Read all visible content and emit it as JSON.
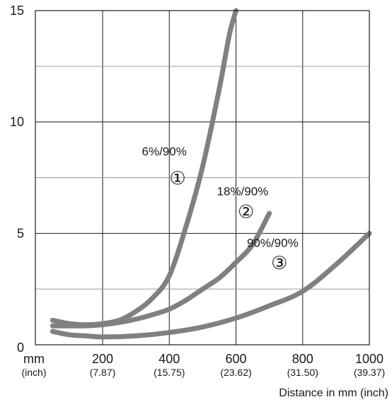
{
  "chart_data": {
    "type": "line",
    "xlabel": "Distance in mm (inch)",
    "xunit_label": "mm",
    "xunit_sub_label": "(inch)",
    "xlim": [
      50,
      1000
    ],
    "ylim": [
      0,
      15
    ],
    "grid": true,
    "x_ticks": [
      {
        "value": 200,
        "label": "200",
        "sub": "(7.87)"
      },
      {
        "value": 400,
        "label": "400",
        "sub": "(15.75)"
      },
      {
        "value": 600,
        "label": "600",
        "sub": "(23.62)"
      },
      {
        "value": 800,
        "label": "800",
        "sub": "(31.50)"
      },
      {
        "value": 1000,
        "label": "1000",
        "sub": "(39.37)"
      }
    ],
    "y_ticks": [
      {
        "value": 0,
        "label": "0"
      },
      {
        "value": 5,
        "label": "5"
      },
      {
        "value": 10,
        "label": "10"
      },
      {
        "value": 15,
        "label": "15"
      }
    ],
    "y_minor_gridlines": [
      2.5,
      7.5,
      12.5
    ],
    "series": [
      {
        "name": "6%/90%",
        "marker": "①",
        "color": "#808080",
        "x": [
          50,
          100,
          150,
          200,
          250,
          300,
          350,
          400,
          450,
          500,
          550,
          580,
          600
        ],
        "y": [
          1.1,
          0.95,
          0.9,
          0.95,
          1.1,
          1.5,
          2.1,
          3.1,
          5.3,
          8.0,
          11.5,
          13.9,
          15.0
        ]
      },
      {
        "name": "18%/90%",
        "marker": "②",
        "color": "#808080",
        "x": [
          50,
          100,
          150,
          200,
          250,
          300,
          350,
          400,
          450,
          500,
          550,
          600,
          650,
          700
        ],
        "y": [
          0.85,
          0.85,
          0.85,
          0.9,
          1.0,
          1.15,
          1.35,
          1.6,
          2.0,
          2.5,
          3.0,
          3.7,
          4.5,
          5.9
        ]
      },
      {
        "name": "90%/90%",
        "marker": "③",
        "color": "#808080",
        "x": [
          50,
          100,
          150,
          200,
          300,
          400,
          500,
          600,
          700,
          800,
          900,
          1000
        ],
        "y": [
          0.6,
          0.45,
          0.4,
          0.35,
          0.4,
          0.55,
          0.8,
          1.2,
          1.75,
          2.4,
          3.6,
          5.0
        ]
      }
    ],
    "annotations": [
      {
        "text": "6%/90%",
        "x": 385,
        "y": 8.5
      },
      {
        "marker": "①",
        "x": 425,
        "y": 7.2
      },
      {
        "text": "18%/90%",
        "x": 620,
        "y": 6.7
      },
      {
        "marker": "②",
        "x": 630,
        "y": 5.7
      },
      {
        "text": "90%/90%",
        "x": 710,
        "y": 4.4
      },
      {
        "marker": "③",
        "x": 730,
        "y": 3.4
      }
    ]
  }
}
